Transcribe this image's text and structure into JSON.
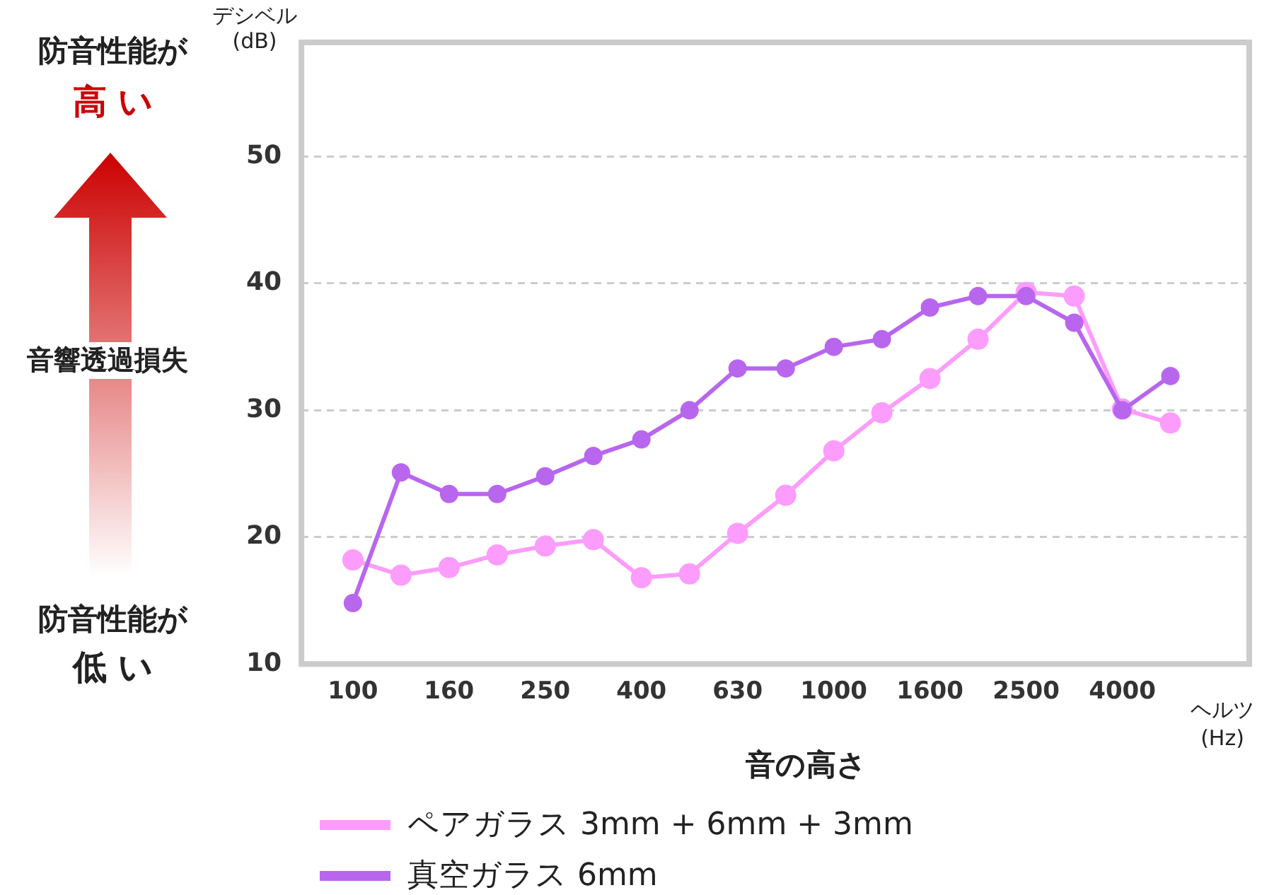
{
  "chart_data": {
    "type": "line",
    "categories": [
      "100",
      null,
      "160",
      null,
      "250",
      null,
      "400",
      null,
      "630",
      null,
      "1000",
      null,
      "1600",
      null,
      "2500",
      null,
      "4000",
      null
    ],
    "series": [
      {
        "name": "ペアガラス 3mm + 6mm + 3mm",
        "color": "#fc9cfc",
        "values": [
          18.2,
          17.0,
          17.6,
          18.6,
          19.3,
          19.8,
          16.8,
          17.1,
          20.3,
          23.3,
          26.8,
          29.8,
          32.5,
          35.6,
          39.3,
          39.0,
          30.1,
          29.0
        ]
      },
      {
        "name": "真空ガラス 6mm",
        "color": "#b866ee",
        "values": [
          14.8,
          25.1,
          23.4,
          23.4,
          24.8,
          26.4,
          27.7,
          30.0,
          33.3,
          33.3,
          35.0,
          35.6,
          38.1,
          39.0,
          39.0,
          36.9,
          30.0,
          32.7
        ]
      }
    ],
    "ylim": [
      10,
      59
    ],
    "yticks": [
      10,
      20,
      30,
      40,
      50
    ],
    "xlabel": "音の高さ",
    "ylabel": "デシベル\n(dB)",
    "annotations": [
      "ヘルツ\n(Hz)",
      "防音性能が",
      "高 い",
      "音響透過損失",
      "防音性能が",
      "低 い"
    ],
    "grid": "y",
    "legend": "bottom",
    "marker": "circle",
    "line_style": "solid"
  }
}
